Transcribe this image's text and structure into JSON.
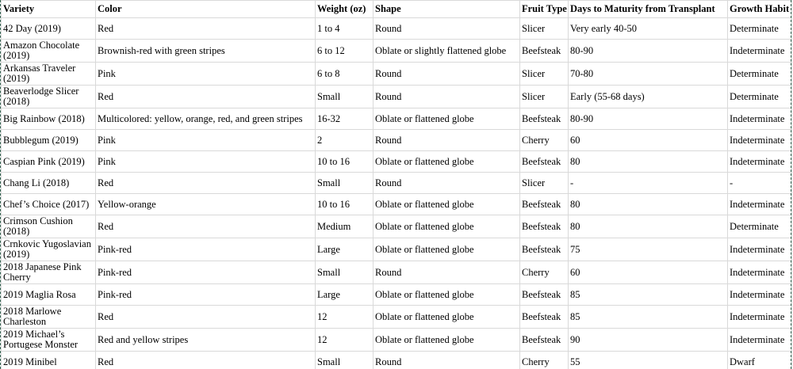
{
  "table": {
    "columns": [
      "Variety",
      "Color",
      "Weight (oz)",
      "Shape",
      "Fruit Type",
      "Days to Maturity from Transplant",
      "Growth Habit"
    ],
    "rows": [
      [
        "42 Day (2019)",
        "Red",
        "1 to 4",
        "Round",
        "Slicer",
        "Very early 40-50",
        "Determinate"
      ],
      [
        "Amazon Chocolate\n(2019)",
        "Brownish-red with green stripes",
        "6 to 12",
        "Oblate or slightly flattened globe",
        "Beefsteak",
        "80-90",
        "Indeterminate"
      ],
      [
        "Arkansas Traveler\n(2019)",
        "Pink",
        "6 to 8",
        "Round",
        "Slicer",
        "70-80",
        "Determinate"
      ],
      [
        "Beaverlodge Slicer\n(2018)",
        "Red",
        "Small",
        "Round",
        "Slicer",
        "Early (55-68 days)",
        "Determinate"
      ],
      [
        "Big Rainbow (2018)",
        "Multicolored: yellow, orange, red, and green stripes",
        "16-32",
        "Oblate or flattened globe",
        "Beefsteak",
        "80-90",
        "Indeterminate"
      ],
      [
        "Bubblegum (2019)",
        "Pink",
        "2",
        "Round",
        "Cherry",
        "60",
        "Indeterminate"
      ],
      [
        "Caspian Pink (2019)",
        "Pink",
        "10 to 16",
        "Oblate or flattened globe",
        "Beefsteak",
        "80",
        "Indeterminate"
      ],
      [
        "Chang Li (2018)",
        "Red",
        "Small",
        "Round",
        "Slicer",
        "-",
        "-"
      ],
      [
        "Chef’s Choice (2017)",
        "Yellow-orange",
        "10 to 16",
        "Oblate or flattened globe",
        "Beefsteak",
        "80",
        "Indeterminate"
      ],
      [
        "Crimson Cushion\n(2018)",
        "Red",
        "Medium",
        "Oblate or flattened globe",
        "Beefsteak",
        "80",
        "Determinate"
      ],
      [
        "Crnkovic Yugoslavian\n(2019)",
        "Pink-red",
        "Large",
        "Oblate or flattened globe",
        "Beefsteak",
        "75",
        "Indeterminate"
      ],
      [
        "2018 Japanese Pink\nCherry",
        "Pink-red",
        "Small",
        "Round",
        "Cherry",
        "60",
        "Indeterminate"
      ],
      [
        "2019 Maglia Rosa",
        "Pink-red",
        "Large",
        "Oblate or flattened globe",
        "Beefsteak",
        "85",
        "Indeterminate"
      ],
      [
        "2018 Marlowe\nCharleston",
        "Red",
        "12",
        "Oblate or flattened globe",
        "Beefsteak",
        "85",
        "Indeterminate"
      ],
      [
        "2019 Michael’s\nPortugese Monster",
        "Red and yellow stripes",
        "12",
        "Oblate or flattened globe",
        "Beefsteak",
        "90",
        "Indeterminate"
      ],
      [
        "2019 Minibel",
        "Red",
        "Small",
        "Round",
        "Cherry",
        "55",
        "Dwarf"
      ]
    ]
  },
  "colors": {
    "cell_border": "#d9d9d9",
    "selection_dash": "#336351",
    "text": "#000000",
    "background": "#ffffff"
  }
}
